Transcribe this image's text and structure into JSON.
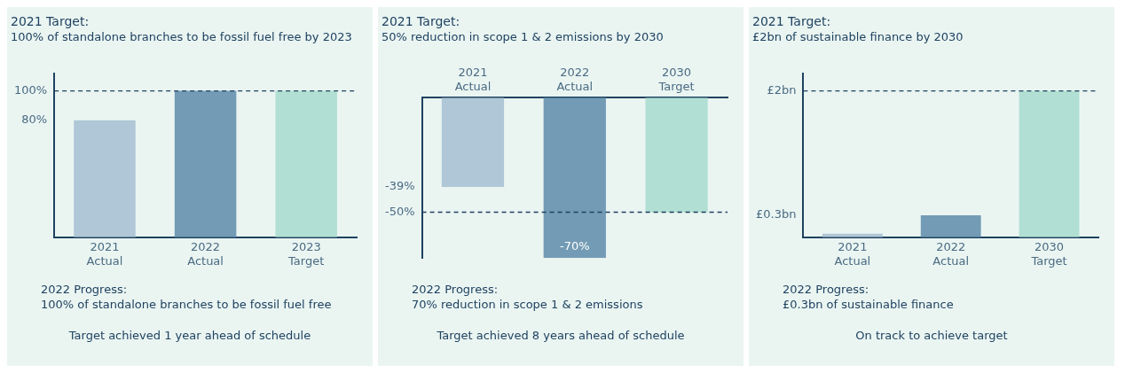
{
  "chart_data": [
    {
      "type": "bar",
      "title": "2021 Target:",
      "subtitle": "100% of standalone branches to be fossil fuel free by 2023",
      "categories": [
        "2021 Actual",
        "2022 Actual",
        "2023 Target"
      ],
      "values": [
        80,
        100,
        100
      ],
      "colors": [
        "#afc7d6",
        "#739bb5",
        "#b1dfd3"
      ],
      "ylim": [
        0,
        112
      ],
      "yticks": [
        {
          "value": 80,
          "label": "80%"
        },
        {
          "value": 100,
          "label": "100%"
        }
      ],
      "ref_lines": [
        {
          "axis": "y",
          "value": 100,
          "color": "#1f4260",
          "line_style": "dashed"
        }
      ],
      "annotations": [
        "2022 Progress:",
        "100% of standalone branches to be fossil fuel free",
        "Target achieved 1 year ahead of schedule"
      ]
    },
    {
      "type": "bar",
      "title": "2021 Target:",
      "subtitle": "50% reduction in scope 1 & 2 emissions by 2030",
      "categories": [
        "2021 Actual",
        "2022 Actual",
        "2030 Target"
      ],
      "values": [
        -39,
        -70,
        -50
      ],
      "colors": [
        "#afc7d6",
        "#739bb5",
        "#b1dfd3"
      ],
      "value_labels": [
        null,
        "-70%",
        null
      ],
      "ylim": [
        -70,
        0
      ],
      "yticks": [
        {
          "value": -39,
          "label": "-39%"
        },
        {
          "value": -50,
          "label": "-50%"
        }
      ],
      "ref_lines": [
        {
          "axis": "y",
          "value": -50,
          "color": "#1f4260",
          "line_style": "dashed"
        }
      ],
      "annotations": [
        "2022 Progress:",
        "70% reduction in scope 1 & 2 emissions",
        "Target achieved 8 years ahead of schedule"
      ]
    },
    {
      "type": "bar",
      "title": "2021 Target:",
      "subtitle": "£2bn of sustainable finance by 2030",
      "categories": [
        "2021 Actual",
        "2022 Actual",
        "2030 Target"
      ],
      "values": [
        0.05,
        0.3,
        2
      ],
      "colors": [
        "#afc7d6",
        "#739bb5",
        "#b1dfd3"
      ],
      "ylim": [
        0,
        2.24
      ],
      "yticks": [
        {
          "value": 0.3,
          "label": "£0.3bn"
        },
        {
          "value": 2,
          "label": "£2bn"
        }
      ],
      "ref_lines": [
        {
          "axis": "y",
          "value": 2,
          "color": "#1f4260",
          "line_style": "dashed"
        }
      ],
      "annotations": [
        "2022 Progress:",
        "£0.3bn of sustainable finance",
        "On track to achieve target"
      ]
    }
  ]
}
